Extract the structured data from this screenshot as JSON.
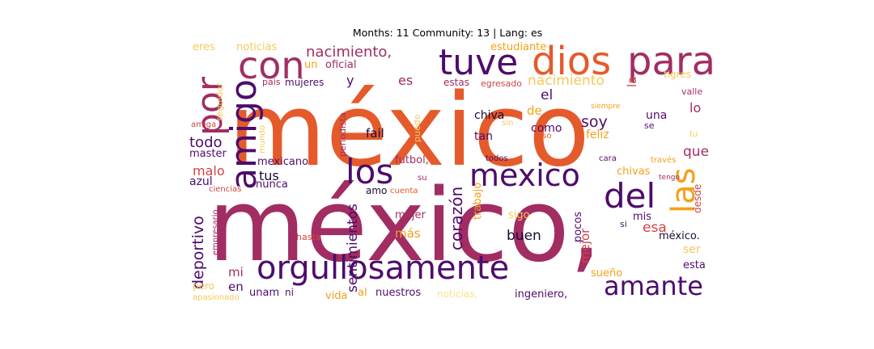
{
  "title": "Months: 11 Community: 13 | Lang: es",
  "words": [
    {
      "text": "méxico",
      "color": "#e55a2b"
    },
    {
      "text": "méxico,",
      "color": "#a12d63"
    },
    {
      "text": "orgullosamente",
      "color": "#4e0c6b"
    },
    {
      "text": "dios",
      "color": "#e55a2b"
    },
    {
      "text": "para",
      "color": "#a12d63"
    },
    {
      "text": "tuve",
      "color": "#4e0c6b"
    },
    {
      "text": "con",
      "color": "#a12d63"
    },
    {
      "text": "amigo",
      "color": "#4e0c6b"
    },
    {
      "text": "por",
      "color": "#a12d63"
    },
    {
      "text": "los",
      "color": "#4e0c6b"
    },
    {
      "text": "mexico",
      "color": "#4e0c6b"
    },
    {
      "text": "del",
      "color": "#4e0c6b"
    },
    {
      "text": "las",
      "color": "#f4a018"
    },
    {
      "text": "amante",
      "color": "#4e0c6b"
    },
    {
      "text": "nacimiento,",
      "color": "#a12d63"
    },
    {
      "text": "nacimiento",
      "color": "#f5c95a"
    },
    {
      "text": "corazón",
      "color": "#4e0c6b"
    },
    {
      "text": "sentimientos",
      "color": "#4e0c6b"
    },
    {
      "text": "deportivo",
      "color": "#4e0c6b"
    },
    {
      "text": "buen",
      "color": "#1b0c34"
    },
    {
      "text": "mejor",
      "color": "#cf4446"
    },
    {
      "text": "esa",
      "color": "#cf4446"
    },
    {
      "text": "soy",
      "color": "#4e0c6b"
    },
    {
      "text": "que",
      "color": "#a12d63"
    },
    {
      "text": "la",
      "color": "#cf4446"
    },
    {
      "text": "el",
      "color": "#4e0c6b"
    },
    {
      "text": "y",
      "color": "#4e0c6b"
    },
    {
      "text": "es",
      "color": "#a12d63"
    },
    {
      "text": "de",
      "color": "#f4a018"
    },
    {
      "text": "todo",
      "color": "#4e0c6b"
    },
    {
      "text": "malo",
      "color": "#cf4446"
    },
    {
      "text": "tus",
      "color": "#1b0c34"
    },
    {
      "text": "mi",
      "color": "#a12d63"
    },
    {
      "text": "en",
      "color": "#4e0c6b"
    },
    {
      "text": "más",
      "color": "#f4a018"
    },
    {
      "text": "lo",
      "color": "#a12d63"
    },
    {
      "text": "fail",
      "color": "#1b0c34"
    },
    {
      "text": "chiva",
      "color": "#1b0c34"
    },
    {
      "text": "tan",
      "color": "#4e0c6b"
    },
    {
      "text": "como",
      "color": "#4e0c6b"
    },
    {
      "text": "feliz",
      "color": "#f4a018"
    },
    {
      "text": "una",
      "color": "#4e0c6b"
    },
    {
      "text": "ser",
      "color": "#f5c95a"
    },
    {
      "text": "esta",
      "color": "#4e0c6b"
    },
    {
      "text": "sueño",
      "color": "#f4a018"
    },
    {
      "text": "unam",
      "color": "#4e0c6b"
    },
    {
      "text": "ingeniero,",
      "color": "#4e0c6b"
    },
    {
      "text": "nuestros",
      "color": "#4e0c6b"
    },
    {
      "text": "noticias",
      "color": "#f5c95a"
    },
    {
      "text": "noticias,",
      "color": "#fbe38c"
    },
    {
      "text": "estudiante",
      "color": "#f4a018"
    },
    {
      "text": "oficial",
      "color": "#a12d63"
    },
    {
      "text": "un",
      "color": "#f4a018"
    },
    {
      "text": "mujeres",
      "color": "#4e0c6b"
    },
    {
      "text": "pais",
      "color": "#a12d63"
    },
    {
      "text": "estas",
      "color": "#a12d63"
    },
    {
      "text": "egresado",
      "color": "#cf4446"
    },
    {
      "text": "eres",
      "color": "#f5c95a"
    },
    {
      "text": "seguidor",
      "color": "#f5c95a"
    },
    {
      "text": "tigres",
      "color": "#f5c95a"
    },
    {
      "text": "valle",
      "color": "#a12d63"
    },
    {
      "text": "se",
      "color": "#4e0c6b"
    },
    {
      "text": "tu",
      "color": "#f5c95a"
    },
    {
      "text": "siempre",
      "color": "#f4a018"
    },
    {
      "text": "sin",
      "color": "#f5c95a"
    },
    {
      "text": "eso",
      "color": "#e55a2b"
    },
    {
      "text": "periodista",
      "color": "#a12d63"
    },
    {
      "text": "mundo",
      "color": "#f5c95a"
    },
    {
      "text": "puede",
      "color": "#f5c95a"
    },
    {
      "text": "amiga",
      "color": "#cf4446"
    },
    {
      "text": "master",
      "color": "#4e0c6b"
    },
    {
      "text": "mexicano",
      "color": "#4e0c6b"
    },
    {
      "text": "azul",
      "color": "#4e0c6b"
    },
    {
      "text": "nunca",
      "color": "#4e0c6b"
    },
    {
      "text": "ciencias",
      "color": "#cf4446"
    },
    {
      "text": "futbol,",
      "color": "#a12d63"
    },
    {
      "text": "su",
      "color": "#a12d63"
    },
    {
      "text": "cuenta",
      "color": "#e55a2b"
    },
    {
      "text": "amo",
      "color": "#1b0c34"
    },
    {
      "text": "trabajo",
      "color": "#f4a018"
    },
    {
      "text": "mujer",
      "color": "#a12d63"
    },
    {
      "text": "todos",
      "color": "#4e0c6b"
    },
    {
      "text": "cara",
      "color": "#4e0c6b"
    },
    {
      "text": "través",
      "color": "#f4a018"
    },
    {
      "text": "tengo",
      "color": "#a12d63"
    },
    {
      "text": "chivas",
      "color": "#f4a018"
    },
    {
      "text": "desde",
      "color": "#cf4446"
    },
    {
      "text": "sigo",
      "color": "#f5c95a"
    },
    {
      "text": "pocos",
      "color": "#4e0c6b"
    },
    {
      "text": "mis",
      "color": "#4e0c6b"
    },
    {
      "text": "si",
      "color": "#4e0c6b"
    },
    {
      "text": "méxico.",
      "color": "#1b0c34"
    },
    {
      "text": "empresario",
      "color": "#a12d63"
    },
    {
      "text": "hasta",
      "color": "#cf4446"
    },
    {
      "text": "pero",
      "color": "#f5c95a"
    },
    {
      "text": "apasionado",
      "color": "#f5c95a"
    },
    {
      "text": "ni",
      "color": "#4e0c6b"
    },
    {
      "text": "al",
      "color": "#f4a018"
    },
    {
      "text": "vida",
      "color": "#f4a018"
    }
  ]
}
